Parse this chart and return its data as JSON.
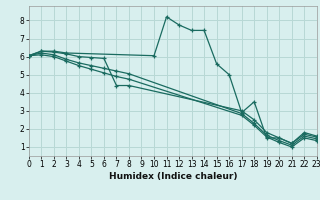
{
  "xlabel": "Humidex (Indice chaleur)",
  "bg_color": "#d8efee",
  "grid_color": "#b8d8d5",
  "line_color": "#1a6b60",
  "xlim": [
    0,
    23
  ],
  "ylim": [
    0.5,
    8.8
  ],
  "xticks": [
    0,
    1,
    2,
    3,
    4,
    5,
    6,
    7,
    8,
    9,
    10,
    11,
    12,
    13,
    14,
    15,
    16,
    17,
    18,
    19,
    20,
    21,
    22,
    23
  ],
  "yticks": [
    1,
    2,
    3,
    4,
    5,
    6,
    7,
    8
  ],
  "lines": [
    {
      "x": [
        0,
        1,
        2,
        3,
        10,
        11,
        12,
        13,
        14,
        15,
        16,
        17,
        18,
        19,
        20,
        21,
        22,
        23
      ],
      "y": [
        6.05,
        6.3,
        6.3,
        6.2,
        6.05,
        8.2,
        7.75,
        7.45,
        7.45,
        5.6,
        5.0,
        2.9,
        3.5,
        1.5,
        1.5,
        1.2,
        1.8,
        1.6
      ],
      "has_marker": true
    },
    {
      "x": [
        0,
        1,
        2,
        3,
        4,
        5,
        6,
        7,
        8,
        17,
        18,
        19,
        20,
        21,
        22,
        23
      ],
      "y": [
        6.05,
        6.3,
        6.25,
        6.15,
        6.0,
        5.95,
        5.9,
        4.4,
        4.4,
        3.0,
        2.5,
        1.8,
        1.5,
        1.2,
        1.7,
        1.55
      ],
      "has_marker": true
    },
    {
      "x": [
        0,
        1,
        2,
        3,
        4,
        5,
        6,
        7,
        8,
        17,
        18,
        19,
        20,
        21,
        22,
        23
      ],
      "y": [
        6.05,
        6.2,
        6.1,
        5.85,
        5.65,
        5.5,
        5.35,
        5.2,
        5.05,
        2.85,
        2.3,
        1.65,
        1.35,
        1.1,
        1.6,
        1.45
      ],
      "has_marker": true
    },
    {
      "x": [
        0,
        1,
        2,
        3,
        4,
        5,
        6,
        7,
        8,
        17,
        18,
        19,
        20,
        21,
        22,
        23
      ],
      "y": [
        6.05,
        6.1,
        6.0,
        5.75,
        5.5,
        5.3,
        5.1,
        4.9,
        4.75,
        2.75,
        2.2,
        1.55,
        1.25,
        1.0,
        1.5,
        1.35
      ],
      "has_marker": true
    }
  ]
}
